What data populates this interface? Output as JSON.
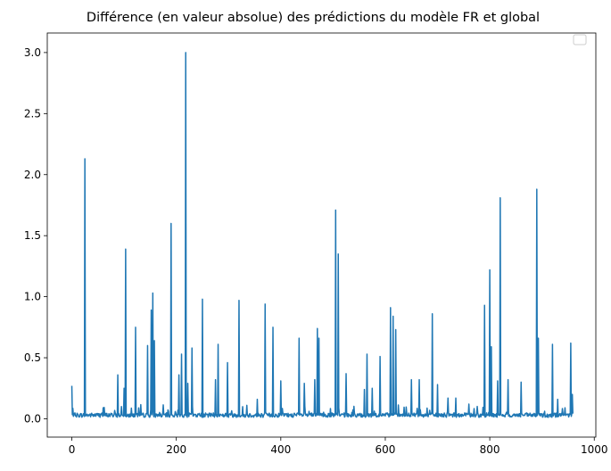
{
  "chart_data": {
    "type": "line",
    "title": "Différence (en valeur absolue) des prédictions du modèle FR et global",
    "xlabel": "",
    "ylabel": "",
    "xlim": [
      -47,
      1003
    ],
    "ylim": [
      -0.15,
      3.16
    ],
    "x_ticks": [
      0,
      200,
      400,
      600,
      800,
      1000
    ],
    "y_ticks": [
      0.0,
      0.5,
      1.0,
      1.5,
      2.0,
      2.5,
      3.0
    ],
    "x_tick_labels": [
      "0",
      "200",
      "400",
      "600",
      "800",
      "1000"
    ],
    "y_tick_labels": [
      "0.0",
      "0.5",
      "1.0",
      "1.5",
      "2.0",
      "2.5",
      "3.0"
    ],
    "legend": "top-right (empty)",
    "grid": false,
    "series": [
      {
        "color": "#1f77b4",
        "n_points": 960,
        "baseline": 0.03,
        "x": [
          0,
          3,
          25,
          60,
          88,
          95,
          100,
          103,
          122,
          145,
          152,
          155,
          158,
          190,
          205,
          210,
          218,
          222,
          230,
          250,
          275,
          280,
          298,
          320,
          335,
          355,
          370,
          385,
          400,
          435,
          445,
          465,
          470,
          473,
          505,
          510,
          525,
          560,
          565,
          575,
          590,
          610,
          615,
          620,
          650,
          665,
          690,
          700,
          720,
          735,
          760,
          790,
          800,
          803,
          815,
          820,
          835,
          860,
          890,
          893,
          920,
          930,
          955,
          958
        ],
        "y": [
          0.27,
          0.02,
          2.13,
          0.09,
          0.36,
          0.1,
          0.25,
          1.39,
          0.75,
          0.6,
          0.89,
          1.03,
          0.64,
          1.6,
          0.36,
          0.53,
          3.0,
          0.29,
          0.58,
          0.98,
          0.32,
          0.61,
          0.46,
          0.97,
          0.11,
          0.16,
          0.94,
          0.75,
          0.31,
          0.66,
          0.29,
          0.32,
          0.74,
          0.66,
          1.71,
          1.35,
          0.37,
          0.24,
          0.53,
          0.25,
          0.51,
          0.91,
          0.84,
          0.73,
          0.32,
          0.32,
          0.86,
          0.28,
          0.17,
          0.17,
          0.12,
          0.93,
          1.22,
          0.59,
          0.31,
          1.81,
          0.32,
          0.3,
          1.88,
          0.66,
          0.61,
          0.16,
          0.62,
          0.2
        ]
      }
    ]
  }
}
